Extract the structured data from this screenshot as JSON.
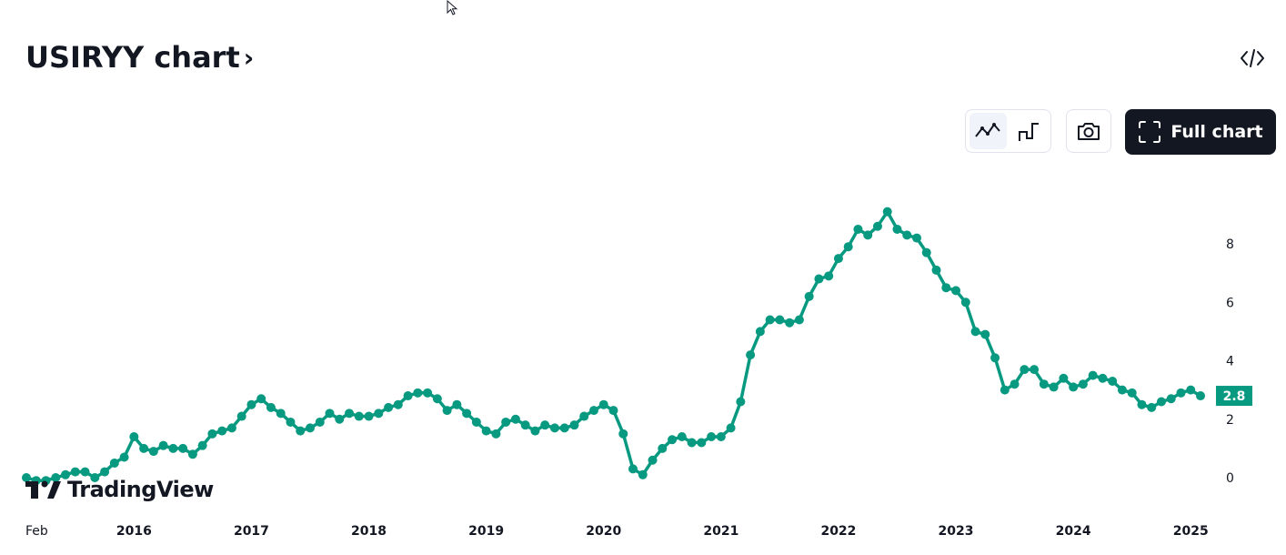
{
  "header": {
    "title": "USIRYY chart",
    "title_chevron": "›",
    "embed_icon": "code-icon"
  },
  "toolbar": {
    "line_style_icon": "line-chart-icon",
    "step_style_icon": "step-chart-icon",
    "snapshot_icon": "camera-icon",
    "full_chart_icon": "fullscreen-icon",
    "full_chart_label": "Full chart"
  },
  "branding": {
    "logo_text": "TradingView",
    "logo_icon": "tradingview-logo-icon"
  },
  "colors": {
    "series": "#089981",
    "text": "#131722",
    "button_dark": "#131722"
  },
  "chart_data": {
    "type": "line",
    "title": "",
    "xlabel": "",
    "ylabel": "",
    "ylim": [
      -0.5,
      9.8
    ],
    "y_ticks": [
      "0",
      "2",
      "4",
      "6",
      "8"
    ],
    "x_ticks": [
      "Feb",
      "2016",
      "2017",
      "2018",
      "2019",
      "2020",
      "2021",
      "2022",
      "2023",
      "2024",
      "2025"
    ],
    "last_value_label": "2.8",
    "legend": "none",
    "grid": false,
    "series": [
      {
        "x_start": "2015-02",
        "x_end": "2025-02",
        "frequency": "monthly",
        "values": [
          0.0,
          -0.1,
          -0.1,
          0.0,
          0.1,
          0.2,
          0.2,
          0.0,
          0.2,
          0.5,
          0.7,
          1.4,
          1.0,
          0.9,
          1.1,
          1.0,
          1.0,
          0.8,
          1.1,
          1.5,
          1.6,
          1.7,
          2.1,
          2.5,
          2.7,
          2.4,
          2.2,
          1.9,
          1.6,
          1.7,
          1.9,
          2.2,
          2.0,
          2.2,
          2.1,
          2.1,
          2.2,
          2.4,
          2.5,
          2.8,
          2.9,
          2.9,
          2.7,
          2.3,
          2.5,
          2.2,
          1.9,
          1.6,
          1.5,
          1.9,
          2.0,
          1.8,
          1.6,
          1.8,
          1.7,
          1.7,
          1.8,
          2.1,
          2.3,
          2.5,
          2.3,
          1.5,
          0.3,
          0.1,
          0.6,
          1.0,
          1.3,
          1.4,
          1.2,
          1.2,
          1.4,
          1.4,
          1.7,
          2.6,
          4.2,
          5.0,
          5.4,
          5.4,
          5.3,
          5.4,
          6.2,
          6.8,
          6.9,
          7.5,
          7.9,
          8.5,
          8.3,
          8.6,
          9.1,
          8.5,
          8.3,
          8.2,
          7.7,
          7.1,
          6.5,
          6.4,
          6.0,
          5.0,
          4.9,
          4.1,
          3.0,
          3.2,
          3.7,
          3.7,
          3.2,
          3.1,
          3.4,
          3.1,
          3.2,
          3.5,
          3.4,
          3.3,
          3.0,
          2.9,
          2.5,
          2.4,
          2.6,
          2.7,
          2.9,
          3.0,
          2.8
        ]
      }
    ]
  }
}
